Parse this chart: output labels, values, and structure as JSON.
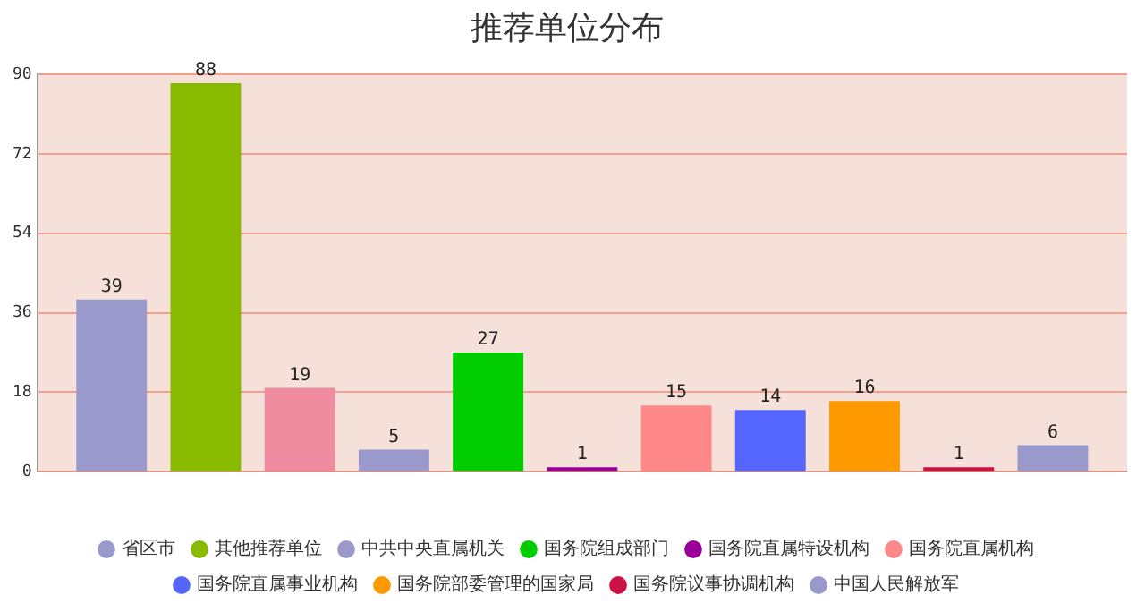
{
  "chart_data": {
    "type": "bar",
    "title": "推荐单位分布",
    "categories": [
      null
    ],
    "series": [
      {
        "name": "省区市",
        "color": "#9999cc",
        "values": [
          39
        ]
      },
      {
        "name": "其他推荐单位",
        "color": "#88bb00",
        "values": [
          88
        ]
      },
      {
        "color": "#f08ca0",
        "values": [
          19
        ]
      },
      {
        "name": "中共中央直属机关",
        "color": "#9999cc",
        "values": [
          5
        ]
      },
      {
        "name": "国务院组成部门",
        "color": "#00cc00",
        "values": [
          27
        ]
      },
      {
        "name": "国务院直属特设机构",
        "color": "#990099",
        "values": [
          1
        ]
      },
      {
        "name": "国务院直属机构",
        "color": "#ff8888",
        "values": [
          15
        ]
      },
      {
        "name": "国务院直属事业机构",
        "color": "#5566ff",
        "values": [
          14
        ]
      },
      {
        "name": "国务院部委管理的国家局",
        "color": "#ff9900",
        "values": [
          16
        ]
      },
      {
        "name": "国务院议事协调机构",
        "color": "#cc1144",
        "values": [
          1
        ]
      },
      {
        "name": "中国人民解放军",
        "color": "#9999cc",
        "values": [
          6
        ]
      }
    ],
    "ylim": [
      0,
      90
    ],
    "yticks": [
      0,
      18,
      36,
      54,
      72,
      90
    ],
    "grid": "y",
    "legend": "bottom",
    "data_labels": true
  }
}
